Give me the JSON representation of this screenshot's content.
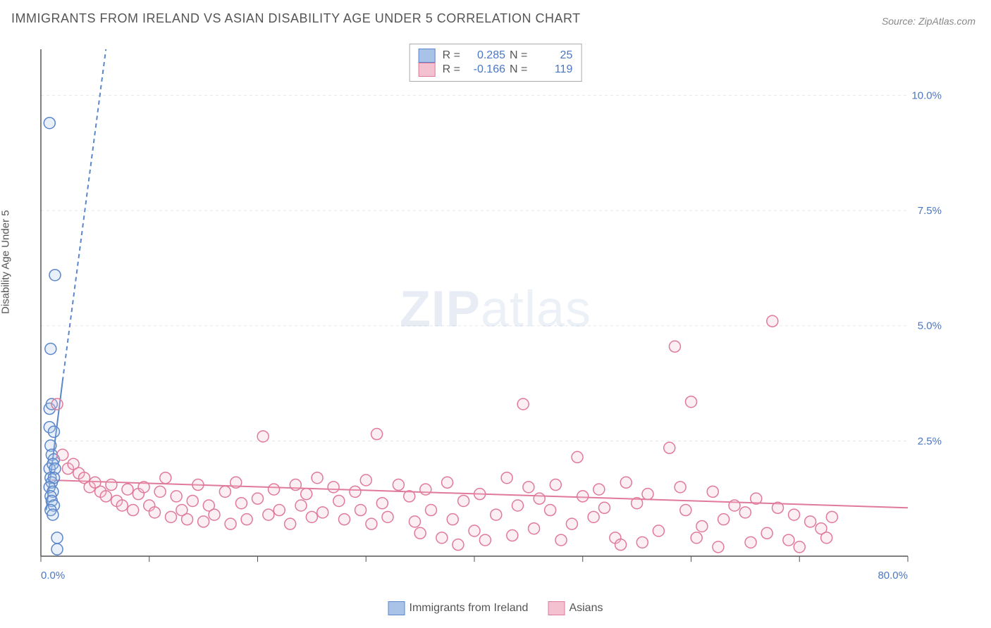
{
  "title": "IMMIGRANTS FROM IRELAND VS ASIAN DISABILITY AGE UNDER 5 CORRELATION CHART",
  "source_prefix": "Source: ",
  "source_name": "ZipAtlas.com",
  "y_axis_label": "Disability Age Under 5",
  "watermark": {
    "bold": "ZIP",
    "rest": "atlas"
  },
  "chart": {
    "type": "scatter",
    "background_color": "#ffffff",
    "grid_color": "#e8e8e8",
    "axis_line_color": "#555555",
    "tick_label_color": "#4a77c4",
    "x": {
      "min": 0,
      "max": 80,
      "tick_step": 10,
      "label_format_pct": true,
      "labeled_ticks": [
        0,
        80
      ]
    },
    "y": {
      "min": 0,
      "max": 11,
      "gridlines": [
        2.5,
        5.0,
        7.5,
        10.0
      ],
      "labeled_ticks": [
        2.5,
        5.0,
        7.5,
        10.0
      ]
    },
    "marker_radius": 8,
    "marker_stroke_width": 1.5,
    "marker_fill_opacity": 0.25,
    "series": [
      {
        "name": "Immigrants from Ireland",
        "key": "ireland",
        "color_stroke": "#5b86c9",
        "color_fill": "#a9c3e8",
        "R": "0.285",
        "N": "25",
        "trend": {
          "solid_from": [
            0.5,
            1.0
          ],
          "solid_to": [
            2.0,
            3.8
          ],
          "dashed_to": [
            6.0,
            11.0
          ],
          "width": 2
        },
        "points": [
          [
            0.8,
            9.4
          ],
          [
            1.3,
            6.1
          ],
          [
            0.9,
            4.5
          ],
          [
            0.8,
            3.2
          ],
          [
            1.0,
            3.3
          ],
          [
            0.8,
            2.8
          ],
          [
            1.2,
            2.7
          ],
          [
            0.9,
            2.4
          ],
          [
            1.0,
            2.2
          ],
          [
            1.2,
            2.1
          ],
          [
            0.8,
            1.9
          ],
          [
            1.1,
            2.0
          ],
          [
            1.3,
            1.9
          ],
          [
            0.9,
            1.7
          ],
          [
            1.0,
            1.6
          ],
          [
            1.2,
            1.7
          ],
          [
            0.8,
            1.5
          ],
          [
            1.1,
            1.4
          ],
          [
            0.9,
            1.3
          ],
          [
            1.0,
            1.2
          ],
          [
            1.2,
            1.1
          ],
          [
            0.9,
            1.0
          ],
          [
            1.1,
            0.9
          ],
          [
            1.5,
            0.4
          ],
          [
            1.5,
            0.15
          ]
        ]
      },
      {
        "name": "Asians",
        "key": "asians",
        "color_stroke": "#e07a9a",
        "color_fill": "#f4c1d1",
        "R": "-0.166",
        "N": "119",
        "trend": {
          "solid_from": [
            1.0,
            1.65
          ],
          "solid_to": [
            80,
            1.05
          ],
          "width": 2
        },
        "points": [
          [
            1.5,
            3.3
          ],
          [
            2.0,
            2.2
          ],
          [
            2.5,
            1.9
          ],
          [
            3,
            2.0
          ],
          [
            3.5,
            1.8
          ],
          [
            4,
            1.7
          ],
          [
            4.5,
            1.5
          ],
          [
            5,
            1.6
          ],
          [
            5.5,
            1.4
          ],
          [
            6,
            1.3
          ],
          [
            6.5,
            1.55
          ],
          [
            7,
            1.2
          ],
          [
            7.5,
            1.1
          ],
          [
            8,
            1.45
          ],
          [
            8.5,
            1.0
          ],
          [
            9,
            1.35
          ],
          [
            9.5,
            1.5
          ],
          [
            10,
            1.1
          ],
          [
            10.5,
            0.95
          ],
          [
            11,
            1.4
          ],
          [
            11.5,
            1.7
          ],
          [
            12,
            0.85
          ],
          [
            12.5,
            1.3
          ],
          [
            13,
            1.0
          ],
          [
            13.5,
            0.8
          ],
          [
            14,
            1.2
          ],
          [
            14.5,
            1.55
          ],
          [
            15,
            0.75
          ],
          [
            15.5,
            1.1
          ],
          [
            16,
            0.9
          ],
          [
            17,
            1.4
          ],
          [
            17.5,
            0.7
          ],
          [
            18,
            1.6
          ],
          [
            18.5,
            1.15
          ],
          [
            19,
            0.8
          ],
          [
            20,
            1.25
          ],
          [
            20.5,
            2.6
          ],
          [
            21,
            0.9
          ],
          [
            21.5,
            1.45
          ],
          [
            22,
            1.0
          ],
          [
            23,
            0.7
          ],
          [
            23.5,
            1.55
          ],
          [
            24,
            1.1
          ],
          [
            24.5,
            1.35
          ],
          [
            25,
            0.85
          ],
          [
            25.5,
            1.7
          ],
          [
            26,
            0.95
          ],
          [
            27,
            1.5
          ],
          [
            27.5,
            1.2
          ],
          [
            28,
            0.8
          ],
          [
            29,
            1.4
          ],
          [
            29.5,
            1.0
          ],
          [
            30,
            1.65
          ],
          [
            30.5,
            0.7
          ],
          [
            31,
            2.65
          ],
          [
            31.5,
            1.15
          ],
          [
            32,
            0.85
          ],
          [
            33,
            1.55
          ],
          [
            34,
            1.3
          ],
          [
            34.5,
            0.75
          ],
          [
            35,
            0.5
          ],
          [
            35.5,
            1.45
          ],
          [
            36,
            1.0
          ],
          [
            37,
            0.4
          ],
          [
            37.5,
            1.6
          ],
          [
            38,
            0.8
          ],
          [
            38.5,
            0.25
          ],
          [
            39,
            1.2
          ],
          [
            40,
            0.55
          ],
          [
            40.5,
            1.35
          ],
          [
            41,
            0.35
          ],
          [
            42,
            0.9
          ],
          [
            43,
            1.7
          ],
          [
            43.5,
            0.45
          ],
          [
            44,
            1.1
          ],
          [
            44.5,
            3.3
          ],
          [
            45,
            1.5
          ],
          [
            45.5,
            0.6
          ],
          [
            46,
            1.25
          ],
          [
            47,
            1.0
          ],
          [
            47.5,
            1.55
          ],
          [
            48,
            0.35
          ],
          [
            49,
            0.7
          ],
          [
            49.5,
            2.15
          ],
          [
            50,
            1.3
          ],
          [
            51,
            0.85
          ],
          [
            51.5,
            1.45
          ],
          [
            52,
            1.05
          ],
          [
            53,
            0.4
          ],
          [
            53.5,
            0.25
          ],
          [
            54,
            1.6
          ],
          [
            55,
            1.15
          ],
          [
            55.5,
            0.3
          ],
          [
            56,
            1.35
          ],
          [
            57,
            0.55
          ],
          [
            58,
            2.35
          ],
          [
            58.5,
            4.55
          ],
          [
            59,
            1.5
          ],
          [
            59.5,
            1.0
          ],
          [
            60,
            3.35
          ],
          [
            60.5,
            0.4
          ],
          [
            61,
            0.65
          ],
          [
            62,
            1.4
          ],
          [
            62.5,
            0.2
          ],
          [
            63,
            0.8
          ],
          [
            64,
            1.1
          ],
          [
            65,
            0.95
          ],
          [
            65.5,
            0.3
          ],
          [
            66,
            1.25
          ],
          [
            67,
            0.5
          ],
          [
            67.5,
            5.1
          ],
          [
            68,
            1.05
          ],
          [
            69,
            0.35
          ],
          [
            69.5,
            0.9
          ],
          [
            70,
            0.2
          ],
          [
            71,
            0.75
          ],
          [
            72,
            0.6
          ],
          [
            72.5,
            0.4
          ],
          [
            73,
            0.85
          ]
        ]
      }
    ]
  },
  "legend_box": {
    "R_label": "R =",
    "N_label": "N ="
  },
  "bottom_legend": [
    {
      "series_key": "ireland"
    },
    {
      "series_key": "asians"
    }
  ]
}
